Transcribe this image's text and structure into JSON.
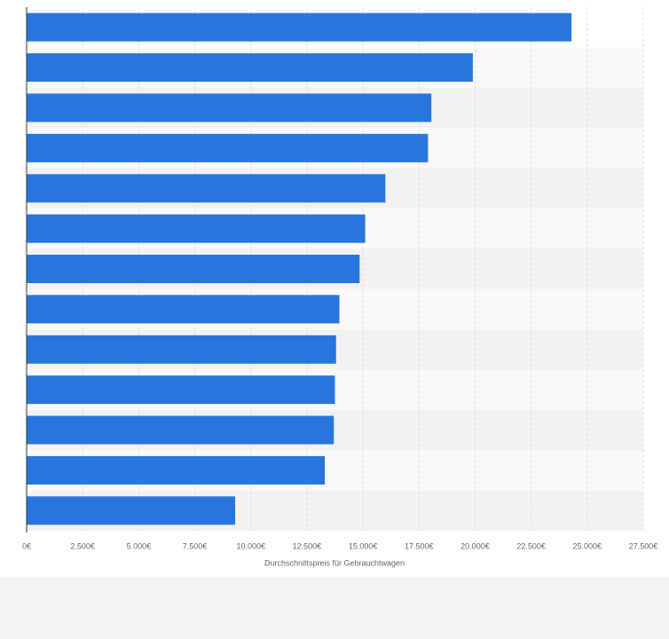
{
  "chart_data": {
    "type": "bar",
    "orientation": "horizontal",
    "x_label": "Durchschnittspreis für Gebrauchtwagen",
    "categories": [
      null,
      null,
      null,
      null,
      null,
      null,
      null,
      null,
      null,
      null,
      null,
      null,
      null
    ],
    "values": [
      24300,
      19900,
      18050,
      17900,
      16000,
      15100,
      14850,
      13950,
      13800,
      13750,
      13700,
      13300,
      9300
    ],
    "color": "#2876dd",
    "xlim": [
      0,
      27500
    ],
    "xticks": [
      {
        "value": 0,
        "label": "0€"
      },
      {
        "value": 2500,
        "label": "2.500€"
      },
      {
        "value": 5000,
        "label": "5.000€"
      },
      {
        "value": 7500,
        "label": "7.500€"
      },
      {
        "value": 10000,
        "label": "10.000€"
      },
      {
        "value": 12500,
        "label": "12.500€"
      },
      {
        "value": 15000,
        "label": "15.000€"
      },
      {
        "value": 17500,
        "label": "17.500€"
      },
      {
        "value": 20000,
        "label": "20.000€"
      },
      {
        "value": 22500,
        "label": "22.500€"
      },
      {
        "value": 25000,
        "label": "25.000€"
      },
      {
        "value": 27500,
        "label": "27.500€"
      }
    ],
    "grid": true
  }
}
